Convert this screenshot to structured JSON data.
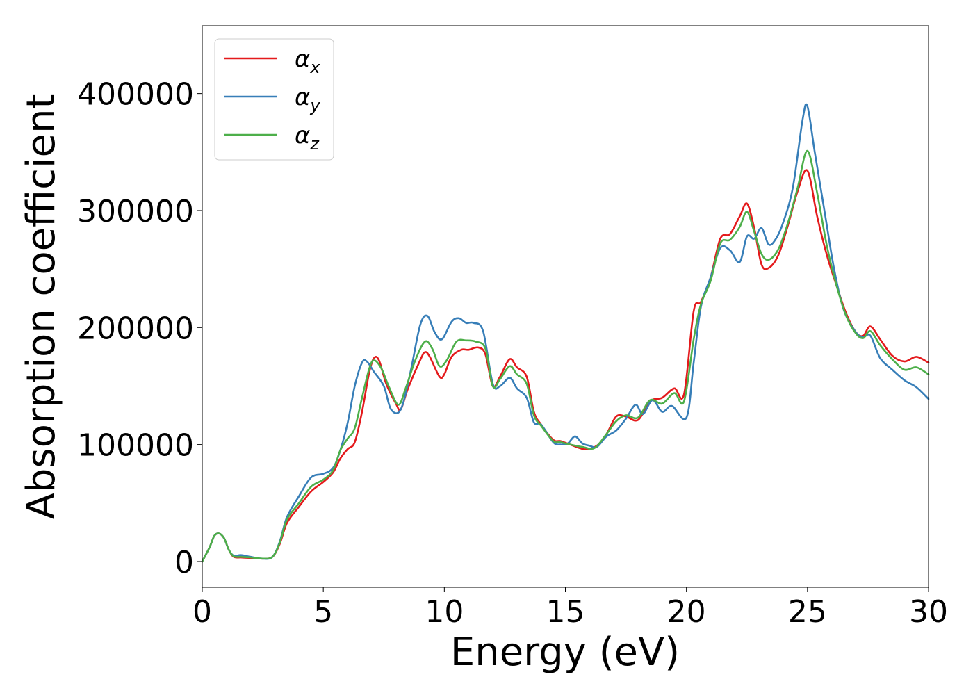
{
  "chart_data": {
    "type": "line",
    "title": "",
    "xlabel": "Energy (eV)",
    "ylabel": "Absorption coefficient",
    "xlim": [
      0,
      30
    ],
    "ylim": [
      -22000,
      458000
    ],
    "xticks": [
      0,
      5,
      10,
      15,
      20,
      25,
      30
    ],
    "xtick_labels": [
      "0",
      "5",
      "10",
      "15",
      "20",
      "25",
      "30"
    ],
    "yticks": [
      0,
      100000,
      200000,
      300000,
      400000
    ],
    "ytick_labels": [
      "0",
      "100000",
      "200000",
      "300000",
      "400000"
    ],
    "grid": false,
    "legend_position": "upper-left",
    "series": [
      {
        "name": "αx",
        "label_base": "α",
        "label_sub": "x",
        "color": "#e41a1c",
        "points": [
          [
            0,
            0
          ],
          [
            0.3,
            12000
          ],
          [
            0.5,
            22000
          ],
          [
            0.7,
            24000
          ],
          [
            0.9,
            20000
          ],
          [
            1.1,
            10000
          ],
          [
            1.3,
            4000
          ],
          [
            1.6,
            3500
          ],
          [
            2.0,
            3000
          ],
          [
            2.5,
            2500
          ],
          [
            2.9,
            4000
          ],
          [
            3.2,
            15000
          ],
          [
            3.5,
            33000
          ],
          [
            4.0,
            47000
          ],
          [
            4.5,
            60000
          ],
          [
            5.0,
            68000
          ],
          [
            5.4,
            76000
          ],
          [
            5.7,
            88000
          ],
          [
            6.0,
            96000
          ],
          [
            6.3,
            102000
          ],
          [
            6.6,
            128000
          ],
          [
            6.9,
            162000
          ],
          [
            7.1,
            174000
          ],
          [
            7.3,
            172000
          ],
          [
            7.6,
            152000
          ],
          [
            8.0,
            135000
          ],
          [
            8.2,
            130000
          ],
          [
            8.5,
            148000
          ],
          [
            9.0,
            172000
          ],
          [
            9.2,
            179000
          ],
          [
            9.4,
            175000
          ],
          [
            9.8,
            158000
          ],
          [
            10.0,
            160000
          ],
          [
            10.3,
            175000
          ],
          [
            10.7,
            181000
          ],
          [
            11.0,
            181000
          ],
          [
            11.4,
            183000
          ],
          [
            11.7,
            177000
          ],
          [
            12.0,
            150000
          ],
          [
            12.3,
            158000
          ],
          [
            12.7,
            173000
          ],
          [
            13.0,
            166000
          ],
          [
            13.4,
            158000
          ],
          [
            13.7,
            128000
          ],
          [
            14.0,
            117000
          ],
          [
            14.5,
            104000
          ],
          [
            14.8,
            103000
          ],
          [
            15.2,
            100000
          ],
          [
            15.8,
            96000
          ],
          [
            16.3,
            99000
          ],
          [
            16.7,
            109000
          ],
          [
            17.1,
            124000
          ],
          [
            17.5,
            124000
          ],
          [
            18.0,
            121000
          ],
          [
            18.5,
            137000
          ],
          [
            19.0,
            140000
          ],
          [
            19.5,
            148000
          ],
          [
            19.9,
            143000
          ],
          [
            20.3,
            214000
          ],
          [
            20.6,
            222000
          ],
          [
            21.0,
            243000
          ],
          [
            21.4,
            276000
          ],
          [
            21.8,
            280000
          ],
          [
            22.2,
            295000
          ],
          [
            22.5,
            306000
          ],
          [
            22.8,
            285000
          ],
          [
            23.1,
            254000
          ],
          [
            23.4,
            251000
          ],
          [
            23.8,
            262000
          ],
          [
            24.2,
            288000
          ],
          [
            24.6,
            317000
          ],
          [
            25.0,
            334000
          ],
          [
            25.4,
            295000
          ],
          [
            25.8,
            262000
          ],
          [
            26.2,
            236000
          ],
          [
            26.6,
            212000
          ],
          [
            27.0,
            196000
          ],
          [
            27.3,
            193000
          ],
          [
            27.6,
            201000
          ],
          [
            28.0,
            190000
          ],
          [
            28.5,
            176000
          ],
          [
            29.0,
            171000
          ],
          [
            29.5,
            175000
          ],
          [
            30.0,
            170000
          ]
        ]
      },
      {
        "name": "αy",
        "label_base": "α",
        "label_sub": "y",
        "color": "#377eb8",
        "points": [
          [
            0,
            0
          ],
          [
            0.3,
            12000
          ],
          [
            0.5,
            22000
          ],
          [
            0.7,
            24000
          ],
          [
            0.9,
            20000
          ],
          [
            1.1,
            10000
          ],
          [
            1.3,
            5000
          ],
          [
            1.6,
            5500
          ],
          [
            2.0,
            4000
          ],
          [
            2.5,
            2500
          ],
          [
            2.9,
            4000
          ],
          [
            3.2,
            17000
          ],
          [
            3.5,
            38000
          ],
          [
            4.0,
            56000
          ],
          [
            4.5,
            72000
          ],
          [
            5.0,
            75000
          ],
          [
            5.4,
            80000
          ],
          [
            5.7,
            95000
          ],
          [
            6.0,
            118000
          ],
          [
            6.3,
            150000
          ],
          [
            6.6,
            170000
          ],
          [
            6.8,
            171000
          ],
          [
            7.1,
            162000
          ],
          [
            7.5,
            150000
          ],
          [
            7.8,
            130000
          ],
          [
            8.2,
            130000
          ],
          [
            8.6,
            162000
          ],
          [
            9.0,
            202000
          ],
          [
            9.3,
            210000
          ],
          [
            9.6,
            196000
          ],
          [
            9.9,
            190000
          ],
          [
            10.3,
            205000
          ],
          [
            10.6,
            208000
          ],
          [
            10.9,
            204000
          ],
          [
            11.2,
            204000
          ],
          [
            11.6,
            197000
          ],
          [
            12.0,
            152000
          ],
          [
            12.3,
            150000
          ],
          [
            12.7,
            157000
          ],
          [
            13.0,
            148000
          ],
          [
            13.4,
            140000
          ],
          [
            13.7,
            119000
          ],
          [
            14.0,
            117000
          ],
          [
            14.5,
            102000
          ],
          [
            14.8,
            100000
          ],
          [
            15.1,
            101000
          ],
          [
            15.4,
            107000
          ],
          [
            15.7,
            101000
          ],
          [
            16.0,
            99000
          ],
          [
            16.3,
            98000
          ],
          [
            16.7,
            107000
          ],
          [
            17.1,
            112000
          ],
          [
            17.5,
            122000
          ],
          [
            17.9,
            134000
          ],
          [
            18.2,
            126000
          ],
          [
            18.6,
            138000
          ],
          [
            19.0,
            128000
          ],
          [
            19.4,
            133000
          ],
          [
            20.0,
            123000
          ],
          [
            20.3,
            170000
          ],
          [
            20.6,
            218000
          ],
          [
            21.0,
            243000
          ],
          [
            21.4,
            268000
          ],
          [
            21.8,
            266000
          ],
          [
            22.2,
            256000
          ],
          [
            22.5,
            278000
          ],
          [
            22.8,
            276000
          ],
          [
            23.1,
            285000
          ],
          [
            23.4,
            271000
          ],
          [
            23.7,
            276000
          ],
          [
            24.0,
            290000
          ],
          [
            24.4,
            320000
          ],
          [
            24.8,
            378000
          ],
          [
            25.0,
            389000
          ],
          [
            25.3,
            350000
          ],
          [
            25.7,
            300000
          ],
          [
            26.1,
            250000
          ],
          [
            26.5,
            215000
          ],
          [
            27.0,
            196000
          ],
          [
            27.3,
            192000
          ],
          [
            27.6,
            193000
          ],
          [
            28.0,
            174000
          ],
          [
            28.5,
            164000
          ],
          [
            29.0,
            155000
          ],
          [
            29.5,
            149000
          ],
          [
            30.0,
            139000
          ]
        ]
      },
      {
        "name": "αz",
        "label_base": "α",
        "label_sub": "z",
        "color": "#4daf4a",
        "points": [
          [
            0,
            0
          ],
          [
            0.3,
            12000
          ],
          [
            0.5,
            22000
          ],
          [
            0.7,
            24000
          ],
          [
            0.9,
            20000
          ],
          [
            1.1,
            10000
          ],
          [
            1.3,
            4500
          ],
          [
            1.6,
            4000
          ],
          [
            2.0,
            3500
          ],
          [
            2.5,
            2500
          ],
          [
            2.9,
            4000
          ],
          [
            3.2,
            16000
          ],
          [
            3.5,
            36000
          ],
          [
            4.0,
            50000
          ],
          [
            4.5,
            64000
          ],
          [
            5.0,
            70000
          ],
          [
            5.4,
            78000
          ],
          [
            5.7,
            95000
          ],
          [
            6.0,
            105000
          ],
          [
            6.3,
            114000
          ],
          [
            6.6,
            140000
          ],
          [
            6.9,
            165000
          ],
          [
            7.1,
            172000
          ],
          [
            7.4,
            165000
          ],
          [
            7.7,
            150000
          ],
          [
            8.1,
            134000
          ],
          [
            8.4,
            148000
          ],
          [
            8.8,
            172000
          ],
          [
            9.2,
            188000
          ],
          [
            9.5,
            182000
          ],
          [
            9.8,
            167000
          ],
          [
            10.1,
            172000
          ],
          [
            10.5,
            188000
          ],
          [
            10.9,
            189000
          ],
          [
            11.3,
            188000
          ],
          [
            11.7,
            182000
          ],
          [
            12.0,
            150000
          ],
          [
            12.3,
            156000
          ],
          [
            12.7,
            167000
          ],
          [
            13.0,
            160000
          ],
          [
            13.4,
            152000
          ],
          [
            13.7,
            125000
          ],
          [
            14.0,
            116000
          ],
          [
            14.5,
            103000
          ],
          [
            14.8,
            102000
          ],
          [
            15.2,
            100000
          ],
          [
            15.7,
            98000
          ],
          [
            16.2,
            97000
          ],
          [
            16.7,
            109000
          ],
          [
            17.1,
            120000
          ],
          [
            17.5,
            125000
          ],
          [
            18.0,
            123000
          ],
          [
            18.5,
            138000
          ],
          [
            19.0,
            135000
          ],
          [
            19.5,
            144000
          ],
          [
            19.9,
            137000
          ],
          [
            20.3,
            190000
          ],
          [
            20.6,
            220000
          ],
          [
            21.0,
            240000
          ],
          [
            21.4,
            272000
          ],
          [
            21.8,
            275000
          ],
          [
            22.2,
            286000
          ],
          [
            22.5,
            299000
          ],
          [
            22.8,
            282000
          ],
          [
            23.1,
            263000
          ],
          [
            23.4,
            258000
          ],
          [
            23.8,
            267000
          ],
          [
            24.2,
            290000
          ],
          [
            24.6,
            320000
          ],
          [
            25.0,
            351000
          ],
          [
            25.4,
            315000
          ],
          [
            25.8,
            270000
          ],
          [
            26.2,
            236000
          ],
          [
            26.6,
            210000
          ],
          [
            27.0,
            195000
          ],
          [
            27.3,
            191000
          ],
          [
            27.6,
            197000
          ],
          [
            28.0,
            185000
          ],
          [
            28.5,
            173000
          ],
          [
            29.0,
            164000
          ],
          [
            29.5,
            166000
          ],
          [
            30.0,
            160000
          ]
        ]
      }
    ]
  }
}
